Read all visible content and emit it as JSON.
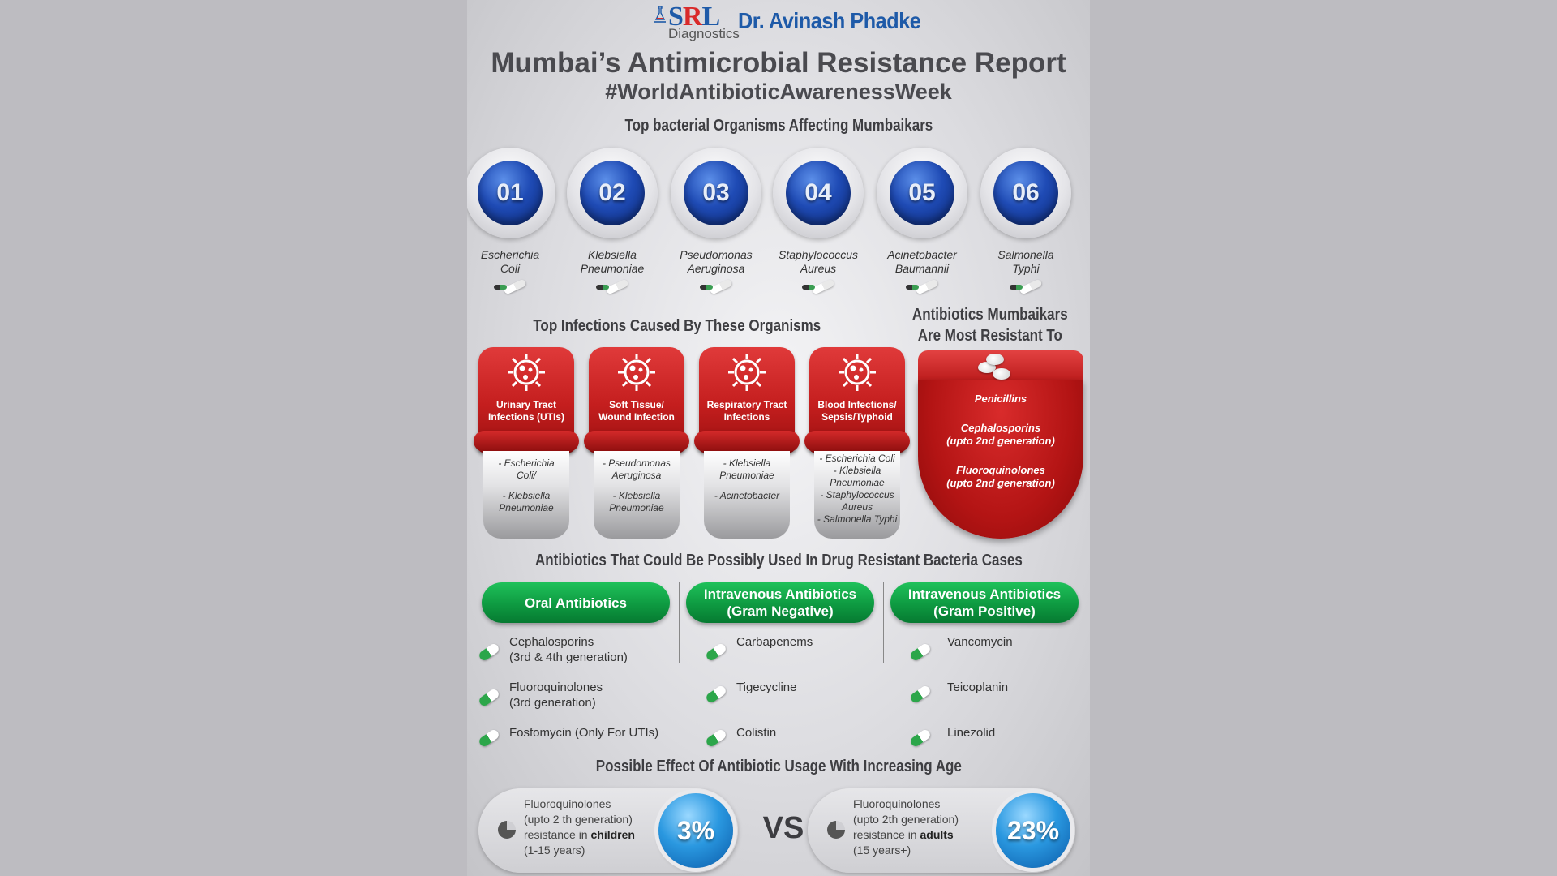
{
  "header": {
    "logo_srl": "SRL",
    "logo_sub": "Diagnostics",
    "doctor": "Dr. Avinash Phadke",
    "title": "Mumbai’s Antimicrobial Resistance Report",
    "hashtag": "#WorldAntibioticAwarenessWeek"
  },
  "organisms": {
    "heading": "Top bacterial Organisms Affecting Mumbaikars",
    "items": [
      {
        "num": "01",
        "line1": "Escherichia",
        "line2": "Coli"
      },
      {
        "num": "02",
        "line1": "Klebsiella",
        "line2": "Pneumoniae"
      },
      {
        "num": "03",
        "line1": "Pseudomonas",
        "line2": "Aeruginosa"
      },
      {
        "num": "04",
        "line1": "Staphylococcus",
        "line2": "Aureus"
      },
      {
        "num": "05",
        "line1": "Acinetobacter",
        "line2": "Baumannii"
      },
      {
        "num": "06",
        "line1": "Salmonella",
        "line2": "Typhi"
      }
    ]
  },
  "infections": {
    "heading": "Top Infections Caused By These Organisms",
    "items": [
      {
        "label1": "Urinary Tract",
        "label2": "Infections (UTIs)",
        "list": [
          "- Escherichia",
          "Coli/",
          "",
          "- Klebsiella",
          "Pneumoniae"
        ]
      },
      {
        "label1": "Soft Tissue/",
        "label2": "Wound Infection",
        "list": [
          "- Pseudomonas",
          "Aeruginosa",
          "",
          "- Klebsiella",
          "Pneumoniae"
        ]
      },
      {
        "label1": "Respiratory Tract",
        "label2": "Infections",
        "list": [
          "- Klebsiella",
          "Pneumoniae",
          "",
          "- Acinetobacter",
          ""
        ]
      },
      {
        "label1": "Blood Infections/",
        "label2": "Sepsis/Typhoid",
        "list": [
          "- Escherichia Coli",
          "- Klebsiella",
          "Pneumoniae",
          "- Staphylococcus",
          "Aureus",
          "- Salmonella Typhi"
        ]
      }
    ]
  },
  "resistant": {
    "heading1": "Antibiotics Mumbaikars",
    "heading2": "Are Most Resistant To",
    "items": [
      "Penicillins",
      "Cephalosporins",
      "(upto 2nd generation)",
      "Fluoroquinolones",
      "(upto 2nd generation)"
    ]
  },
  "antibiotics": {
    "heading": "Antibiotics That Could Be Possibly Used In Drug Resistant Bacteria Cases",
    "columns": [
      {
        "title1": "Oral Antibiotics",
        "title2": "",
        "items": [
          [
            "Cephalosporins",
            "(3rd & 4th generation)"
          ],
          [
            "Fluoroquinolones",
            "(3rd generation)"
          ],
          [
            "Fosfomycin (Only For UTIs)",
            ""
          ]
        ]
      },
      {
        "title1": "Intravenous Antibiotics",
        "title2": "(Gram Negative)",
        "items": [
          [
            "Carbapenems",
            ""
          ],
          [
            "Tigecycline",
            ""
          ],
          [
            "Colistin",
            ""
          ]
        ]
      },
      {
        "title1": "Intravenous Antibiotics",
        "title2": "(Gram Positive)",
        "items": [
          [
            "Vancomycin",
            ""
          ],
          [
            "Teicoplanin",
            ""
          ],
          [
            "Linezolid",
            ""
          ]
        ]
      }
    ]
  },
  "age": {
    "heading": "Possible Effect Of Antibiotic Usage With Increasing Age",
    "vs": "VS",
    "children": {
      "l1": "Fluoroquinolones",
      "l2": "(upto 2 th generation)",
      "l3a": "resistance in ",
      "l3b": "children",
      "l4": "(1-15 years)",
      "pct": "3%"
    },
    "adults": {
      "l1": "Fluoroquinolones",
      "l2": "(upto 2th generation)",
      "l3a": "resistance in ",
      "l3b": "adults",
      "l4": "(15 years+)",
      "pct": "23%"
    }
  }
}
